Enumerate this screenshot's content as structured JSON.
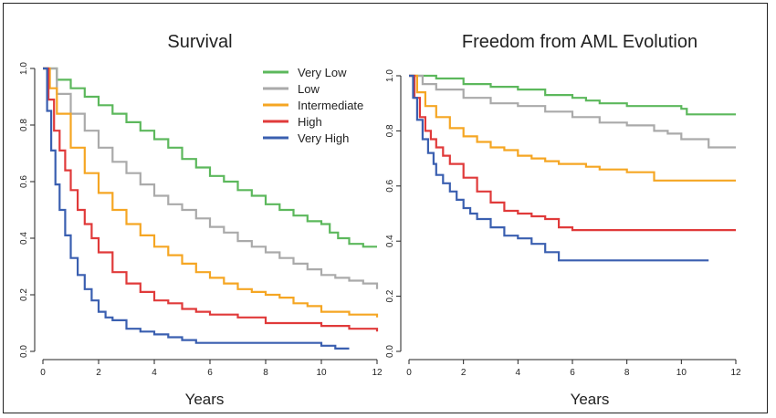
{
  "chart_data": [
    {
      "type": "line",
      "title": "Survival",
      "xlabel": "Years",
      "ylabel": "",
      "xlim": [
        0,
        12
      ],
      "ylim": [
        0,
        1
      ],
      "xticks": [
        "0",
        "2",
        "4",
        "6",
        "8",
        "10",
        "12"
      ],
      "yticks": [
        "0.0",
        "0.2",
        "0.4",
        "0.6",
        "0.8",
        "1.0"
      ],
      "grid": false,
      "legend": "top-right",
      "series": [
        {
          "name": "Very Low",
          "color": "#5cb85c",
          "x": [
            0,
            0.5,
            1,
            1.5,
            2,
            2.5,
            3,
            3.5,
            4,
            4.5,
            5,
            5.5,
            6,
            6.5,
            7,
            7.5,
            8,
            8.5,
            9,
            9.5,
            10,
            10.3,
            10.6,
            11,
            11.5,
            12
          ],
          "y": [
            1.0,
            0.96,
            0.93,
            0.9,
            0.87,
            0.84,
            0.81,
            0.78,
            0.75,
            0.72,
            0.68,
            0.65,
            0.62,
            0.6,
            0.57,
            0.55,
            0.52,
            0.5,
            0.48,
            0.46,
            0.45,
            0.42,
            0.4,
            0.38,
            0.37,
            0.37
          ]
        },
        {
          "name": "Low",
          "color": "#aaaaaa",
          "x": [
            0,
            0.5,
            1,
            1.5,
            2,
            2.5,
            3,
            3.5,
            4,
            4.5,
            5,
            5.5,
            6,
            6.5,
            7,
            7.5,
            8,
            8.5,
            9,
            9.5,
            10,
            10.5,
            11,
            11.5,
            12
          ],
          "y": [
            1.0,
            0.91,
            0.84,
            0.78,
            0.72,
            0.67,
            0.63,
            0.59,
            0.55,
            0.52,
            0.5,
            0.47,
            0.44,
            0.42,
            0.39,
            0.37,
            0.35,
            0.33,
            0.31,
            0.29,
            0.27,
            0.26,
            0.25,
            0.24,
            0.22
          ]
        },
        {
          "name": "Intermediate",
          "color": "#f5a623",
          "x": [
            0,
            0.25,
            0.5,
            1,
            1.5,
            2,
            2.5,
            3,
            3.5,
            4,
            4.5,
            5,
            5.5,
            6,
            6.5,
            7,
            7.5,
            8,
            8.5,
            9,
            9.5,
            10,
            10.5,
            11,
            11.5,
            12
          ],
          "y": [
            1.0,
            0.93,
            0.84,
            0.72,
            0.63,
            0.56,
            0.5,
            0.45,
            0.41,
            0.37,
            0.34,
            0.31,
            0.28,
            0.26,
            0.24,
            0.22,
            0.21,
            0.2,
            0.19,
            0.17,
            0.16,
            0.14,
            0.14,
            0.13,
            0.13,
            0.12
          ]
        },
        {
          "name": "High",
          "color": "#e03a3a",
          "x": [
            0,
            0.2,
            0.4,
            0.6,
            0.8,
            1,
            1.25,
            1.5,
            1.75,
            2,
            2.5,
            3,
            3.5,
            4,
            4.5,
            5,
            5.5,
            6,
            7,
            8,
            9,
            10,
            11,
            12
          ],
          "y": [
            1.0,
            0.89,
            0.78,
            0.71,
            0.64,
            0.57,
            0.5,
            0.45,
            0.4,
            0.35,
            0.28,
            0.24,
            0.21,
            0.18,
            0.17,
            0.15,
            0.14,
            0.13,
            0.12,
            0.1,
            0.1,
            0.09,
            0.08,
            0.07
          ]
        },
        {
          "name": "Very High",
          "color": "#3a5fb0",
          "x": [
            0,
            0.15,
            0.3,
            0.45,
            0.6,
            0.8,
            1,
            1.25,
            1.5,
            1.75,
            2,
            2.25,
            2.5,
            3,
            3.5,
            4,
            4.5,
            5,
            5.5,
            6,
            7,
            8,
            9,
            10,
            10.5,
            11
          ],
          "y": [
            1.0,
            0.85,
            0.71,
            0.59,
            0.5,
            0.41,
            0.33,
            0.27,
            0.22,
            0.18,
            0.14,
            0.12,
            0.11,
            0.08,
            0.07,
            0.06,
            0.05,
            0.04,
            0.03,
            0.03,
            0.03,
            0.03,
            0.03,
            0.02,
            0.01,
            0.01
          ]
        }
      ]
    },
    {
      "type": "line",
      "title": "Freedom from AML Evolution",
      "xlabel": "Years",
      "ylabel": "",
      "xlim": [
        0,
        12
      ],
      "ylim": [
        0,
        1
      ],
      "xticks": [
        "0",
        "2",
        "4",
        "6",
        "8",
        "10",
        "12"
      ],
      "yticks": [
        "0.0",
        "0.2",
        "0.4",
        "0.6",
        "0.8",
        "1.0"
      ],
      "grid": false,
      "series": [
        {
          "name": "Very Low",
          "color": "#5cb85c",
          "x": [
            0,
            1,
            2,
            3,
            4,
            5,
            6,
            6.5,
            7,
            8,
            9,
            10,
            10.2,
            11,
            12
          ],
          "y": [
            1.0,
            0.99,
            0.97,
            0.96,
            0.95,
            0.93,
            0.92,
            0.91,
            0.9,
            0.89,
            0.89,
            0.88,
            0.86,
            0.86,
            0.86
          ]
        },
        {
          "name": "Low",
          "color": "#aaaaaa",
          "x": [
            0,
            0.5,
            1,
            2,
            3,
            4,
            5,
            6,
            7,
            8,
            9,
            9.5,
            10,
            10.5,
            11,
            12
          ],
          "y": [
            1.0,
            0.97,
            0.95,
            0.92,
            0.9,
            0.89,
            0.87,
            0.85,
            0.83,
            0.82,
            0.8,
            0.79,
            0.77,
            0.77,
            0.74,
            0.74
          ]
        },
        {
          "name": "Intermediate",
          "color": "#f5a623",
          "x": [
            0,
            0.3,
            0.6,
            1,
            1.5,
            2,
            2.5,
            3,
            3.5,
            4,
            4.5,
            5,
            5.5,
            6,
            6.5,
            7,
            7.5,
            8,
            8.5,
            9,
            10,
            11,
            12
          ],
          "y": [
            1.0,
            0.94,
            0.89,
            0.85,
            0.81,
            0.78,
            0.76,
            0.74,
            0.73,
            0.71,
            0.7,
            0.69,
            0.68,
            0.68,
            0.67,
            0.66,
            0.66,
            0.65,
            0.65,
            0.62,
            0.62,
            0.62,
            0.62
          ]
        },
        {
          "name": "High",
          "color": "#e03a3a",
          "x": [
            0,
            0.2,
            0.4,
            0.6,
            0.8,
            1,
            1.25,
            1.5,
            2,
            2.5,
            3,
            3.5,
            4,
            4.5,
            5,
            5.5,
            6,
            7,
            8,
            10,
            12
          ],
          "y": [
            1.0,
            0.92,
            0.85,
            0.8,
            0.77,
            0.74,
            0.71,
            0.68,
            0.63,
            0.58,
            0.54,
            0.51,
            0.5,
            0.49,
            0.48,
            0.45,
            0.44,
            0.44,
            0.44,
            0.44,
            0.44
          ]
        },
        {
          "name": "Very High",
          "color": "#3a5fb0",
          "x": [
            0,
            0.15,
            0.3,
            0.5,
            0.7,
            0.9,
            1,
            1.25,
            1.5,
            1.75,
            2,
            2.25,
            2.5,
            3,
            3.5,
            4,
            4.5,
            5,
            5.5,
            6,
            7,
            8,
            9,
            10,
            11
          ],
          "y": [
            1.0,
            0.92,
            0.84,
            0.77,
            0.72,
            0.68,
            0.64,
            0.61,
            0.58,
            0.55,
            0.52,
            0.5,
            0.48,
            0.45,
            0.42,
            0.41,
            0.39,
            0.36,
            0.33,
            0.33,
            0.33,
            0.33,
            0.33,
            0.33,
            0.33
          ]
        }
      ]
    }
  ]
}
